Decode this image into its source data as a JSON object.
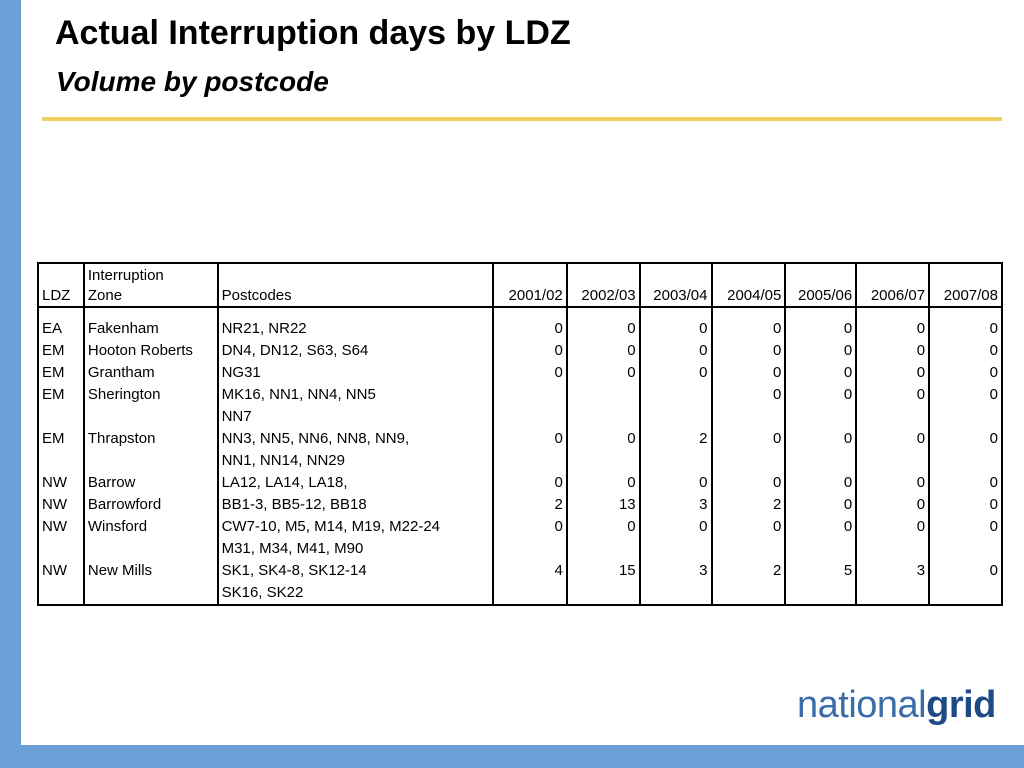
{
  "slide": {
    "title": "Actual Interruption days by LDZ",
    "subtitle": "Volume by postcode"
  },
  "table": {
    "headers": {
      "ldz": "LDZ",
      "zone_line1": "Interruption",
      "zone_line2": "Zone",
      "postcodes": "Postcodes",
      "years": [
        "2001/02",
        "2002/03",
        "2003/04",
        "2004/05",
        "2005/06",
        "2006/07",
        "2007/08"
      ]
    },
    "rows": [
      {
        "ldz": "EA",
        "zone": "Fakenham",
        "postcodes": "NR21, NR22",
        "values": [
          "0",
          "0",
          "0",
          "0",
          "0",
          "0",
          "0"
        ]
      },
      {
        "ldz": "EM",
        "zone": "Hooton Roberts",
        "postcodes": "DN4, DN12, S63, S64",
        "values": [
          "0",
          "0",
          "0",
          "0",
          "0",
          "0",
          "0"
        ]
      },
      {
        "ldz": "EM",
        "zone": "Grantham",
        "postcodes": "NG31",
        "values": [
          "0",
          "0",
          "0",
          "0",
          "0",
          "0",
          "0"
        ]
      },
      {
        "ldz": "EM",
        "zone": "Sherington",
        "postcodes": "MK16, NN1, NN4, NN5",
        "values": [
          "",
          "",
          "",
          "0",
          "0",
          "0",
          "0"
        ]
      },
      {
        "ldz": "",
        "zone": "",
        "postcodes": "NN7",
        "values": [
          "",
          "",
          "",
          "",
          "",
          "",
          ""
        ]
      },
      {
        "ldz": "EM",
        "zone": "Thrapston",
        "postcodes": "NN3, NN5, NN6, NN8, NN9,",
        "values": [
          "0",
          "0",
          "2",
          "0",
          "0",
          "0",
          "0"
        ]
      },
      {
        "ldz": "",
        "zone": "",
        "postcodes": "NN1, NN14, NN29",
        "values": [
          "",
          "",
          "",
          "",
          "",
          "",
          ""
        ]
      },
      {
        "ldz": "NW",
        "zone": "Barrow",
        "postcodes": "LA12, LA14, LA18,",
        "values": [
          "0",
          "0",
          "0",
          "0",
          "0",
          "0",
          "0"
        ]
      },
      {
        "ldz": "NW",
        "zone": "Barrowford",
        "postcodes": "BB1-3, BB5-12, BB18",
        "values": [
          "2",
          "13",
          "3",
          "2",
          "0",
          "0",
          "0"
        ]
      },
      {
        "ldz": "NW",
        "zone": "Winsford",
        "postcodes": "CW7-10, M5, M14, M19, M22-24",
        "values": [
          "0",
          "0",
          "0",
          "0",
          "0",
          "0",
          "0"
        ]
      },
      {
        "ldz": "",
        "zone": "",
        "postcodes": "M31, M34, M41, M90",
        "values": [
          "",
          "",
          "",
          "",
          "",
          "",
          ""
        ]
      },
      {
        "ldz": "NW",
        "zone": "New Mills",
        "postcodes": "SK1, SK4-8, SK12-14",
        "values": [
          "4",
          "15",
          "3",
          "2",
          "5",
          "3",
          "0"
        ]
      },
      {
        "ldz": "",
        "zone": "",
        "postcodes": "SK16, SK22",
        "values": [
          "",
          "",
          "",
          "",
          "",
          "",
          ""
        ]
      }
    ]
  },
  "logo": {
    "light": "national",
    "bold": "grid"
  },
  "colors": {
    "frame_blue": "#6a9fd8",
    "rule_gold": "#f0d060",
    "logo_blue": "#3a6ca8"
  }
}
